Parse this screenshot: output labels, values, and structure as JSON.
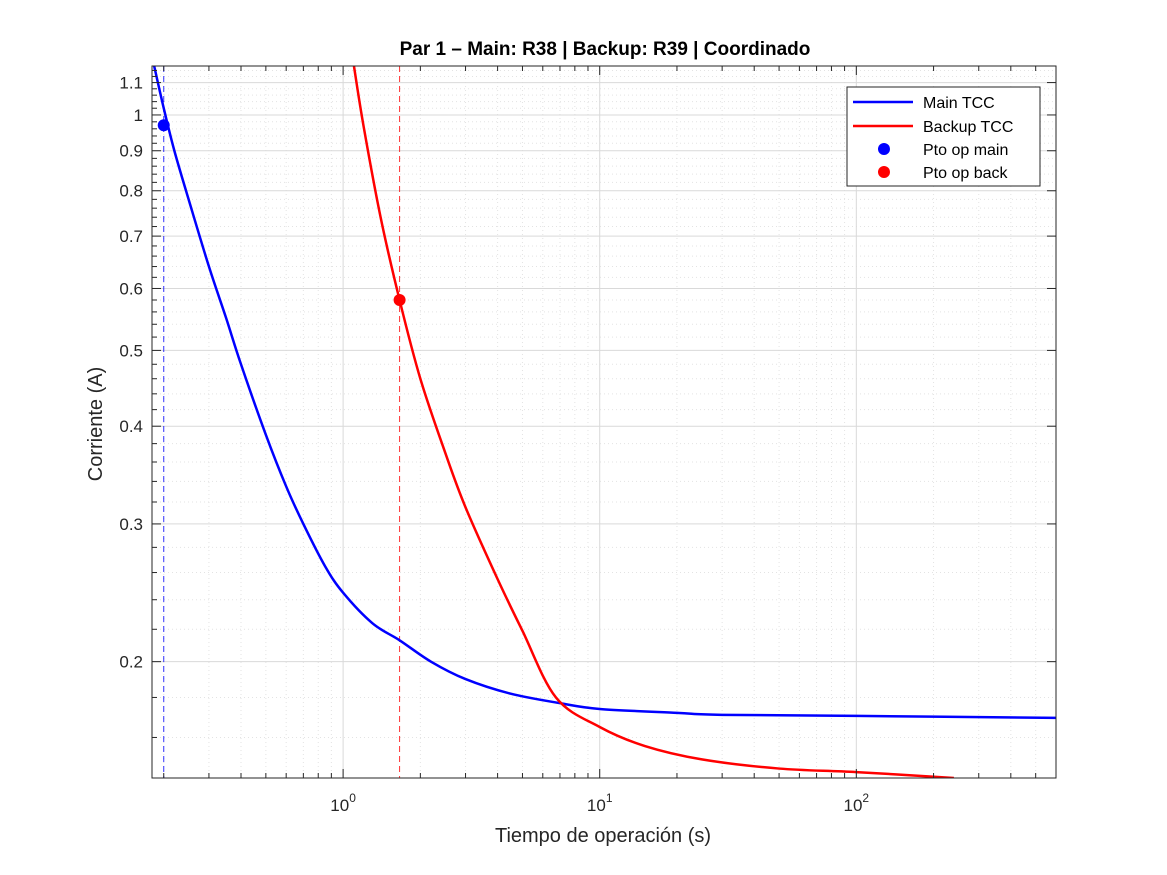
{
  "chart_data": {
    "type": "line",
    "title": "Par 1 – Main: R38 | Backup: R39 | Coordinado",
    "xlabel": "Tiempo de operación (s)",
    "ylabel": "Corriente (A)",
    "xscale": "log",
    "yscale": "log",
    "xlim": [
      0.18,
      600
    ],
    "ylim": [
      0.142,
      1.155
    ],
    "grid": "on (major and minor)",
    "legend_position": "top-right",
    "x_ticks": [
      {
        "value": 1,
        "base": "10",
        "exp": "0"
      },
      {
        "value": 10,
        "base": "10",
        "exp": "1"
      },
      {
        "value": 100,
        "base": "10",
        "exp": "2"
      }
    ],
    "y_ticks": [
      {
        "value": 0.2,
        "label": "0.2"
      },
      {
        "value": 0.3,
        "label": "0.3"
      },
      {
        "value": 0.4,
        "label": "0.4"
      },
      {
        "value": 0.5,
        "label": "0.5"
      },
      {
        "value": 0.6,
        "label": "0.6"
      },
      {
        "value": 0.7,
        "label": "0.7"
      },
      {
        "value": 0.8,
        "label": "0.8"
      },
      {
        "value": 0.9,
        "label": "0.9"
      },
      {
        "value": 1.0,
        "label": "1"
      },
      {
        "value": 1.1,
        "label": "1.1"
      }
    ],
    "series": [
      {
        "name": "Main TCC",
        "color": "#0000ff",
        "points": [
          [
            0.183,
            1.16
          ],
          [
            0.2,
            1.02
          ],
          [
            0.22,
            0.9
          ],
          [
            0.25,
            0.78
          ],
          [
            0.3,
            0.64
          ],
          [
            0.35,
            0.55
          ],
          [
            0.4,
            0.48
          ],
          [
            0.5,
            0.39
          ],
          [
            0.6,
            0.335
          ],
          [
            0.7,
            0.3
          ],
          [
            0.85,
            0.265
          ],
          [
            1.0,
            0.245
          ],
          [
            1.3,
            0.224
          ],
          [
            1.66,
            0.213
          ],
          [
            2.2,
            0.2
          ],
          [
            3.0,
            0.19
          ],
          [
            4.5,
            0.182
          ],
          [
            7.0,
            0.177
          ],
          [
            10.0,
            0.174
          ],
          [
            20.0,
            0.172
          ],
          [
            30.0,
            0.171
          ],
          [
            100.0,
            0.1705
          ],
          [
            600.0,
            0.1695
          ]
        ]
      },
      {
        "name": "Backup TCC",
        "color": "#ff0000",
        "points": [
          [
            1.1,
            1.16
          ],
          [
            1.2,
            0.97
          ],
          [
            1.4,
            0.74
          ],
          [
            1.66,
            0.58
          ],
          [
            2.0,
            0.46
          ],
          [
            2.5,
            0.37
          ],
          [
            3.0,
            0.315
          ],
          [
            4.0,
            0.255
          ],
          [
            5.0,
            0.219
          ],
          [
            6.75,
            0.18
          ],
          [
            10.0,
            0.165
          ],
          [
            15.0,
            0.156
          ],
          [
            25.0,
            0.15
          ],
          [
            50.0,
            0.146
          ],
          [
            100.0,
            0.1445
          ],
          [
            240.0,
            0.142
          ]
        ]
      }
    ],
    "operating_points": [
      {
        "name": "Pto op main",
        "color": "#0000ff",
        "x": 0.2,
        "y": 0.97
      },
      {
        "name": "Pto op back",
        "color": "#ff0000",
        "x": 1.66,
        "y": 0.58
      }
    ],
    "reference_lines": [
      {
        "x": 0.2,
        "color": "#0000ff",
        "style": "dashed"
      },
      {
        "x": 1.66,
        "color": "#ff0000",
        "style": "dashed"
      }
    ]
  }
}
